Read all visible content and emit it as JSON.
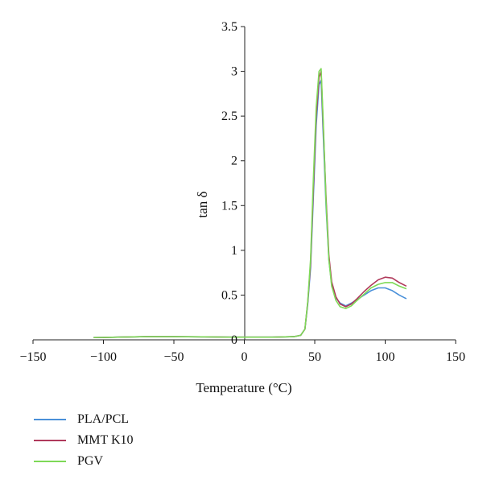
{
  "chart_data": {
    "type": "line",
    "xlabel": "Temperature (°C)",
    "ylabel": "tan δ",
    "xlim": [
      -150,
      150
    ],
    "ylim": [
      0,
      3.5
    ],
    "x_ticks": [
      -150,
      -100,
      -50,
      0,
      50,
      100,
      150
    ],
    "y_ticks": [
      0,
      0.5,
      1,
      1.5,
      2,
      2.5,
      3,
      3.5
    ],
    "x_tick_labels": [
      "−150",
      "−100",
      "−50",
      "0",
      "50",
      "100",
      "150"
    ],
    "y_tick_labels": [
      "0",
      "0.5",
      "1",
      "1.5",
      "2",
      "2.5",
      "3",
      "3.5"
    ],
    "grid": false,
    "legend_position": "bottom-left",
    "series": [
      {
        "name": "PLA/PCL",
        "color": "#4a90d9",
        "x": [
          -107,
          -90,
          -70,
          -50,
          -30,
          -10,
          0,
          20,
          35,
          40,
          43,
          45,
          47,
          49,
          51,
          53,
          54.5,
          56,
          58,
          60,
          62,
          65,
          68,
          72,
          76,
          80,
          85,
          90,
          95,
          100,
          105,
          110,
          115
        ],
        "y": [
          0.025,
          0.03,
          0.035,
          0.035,
          0.033,
          0.03,
          0.03,
          0.03,
          0.035,
          0.05,
          0.12,
          0.4,
          0.8,
          1.6,
          2.4,
          2.85,
          2.9,
          2.3,
          1.5,
          0.9,
          0.62,
          0.47,
          0.41,
          0.38,
          0.41,
          0.45,
          0.5,
          0.55,
          0.58,
          0.58,
          0.55,
          0.5,
          0.46
        ]
      },
      {
        "name": "MMT K10",
        "color": "#b03a5b",
        "x": [
          -107,
          -90,
          -70,
          -50,
          -30,
          -10,
          0,
          20,
          35,
          40,
          43,
          45,
          47,
          49,
          51,
          53,
          54.5,
          56,
          58,
          60,
          62,
          65,
          68,
          72,
          76,
          80,
          85,
          90,
          95,
          100,
          105,
          110,
          115
        ],
        "y": [
          0.025,
          0.03,
          0.035,
          0.035,
          0.033,
          0.03,
          0.03,
          0.03,
          0.035,
          0.05,
          0.12,
          0.42,
          0.85,
          1.7,
          2.5,
          2.93,
          3.0,
          2.4,
          1.6,
          0.95,
          0.65,
          0.48,
          0.4,
          0.37,
          0.4,
          0.46,
          0.54,
          0.61,
          0.67,
          0.7,
          0.69,
          0.64,
          0.6
        ]
      },
      {
        "name": "PGV",
        "color": "#7ed957",
        "x": [
          -107,
          -90,
          -70,
          -50,
          -30,
          -10,
          0,
          20,
          35,
          40,
          43,
          45,
          47,
          49,
          51,
          53,
          54.5,
          56,
          58,
          60,
          62,
          65,
          68,
          72,
          76,
          80,
          85,
          90,
          95,
          100,
          105,
          110,
          115
        ],
        "y": [
          0.025,
          0.03,
          0.035,
          0.035,
          0.033,
          0.03,
          0.03,
          0.03,
          0.035,
          0.05,
          0.12,
          0.43,
          0.9,
          1.8,
          2.6,
          3.0,
          3.03,
          2.45,
          1.55,
          0.9,
          0.6,
          0.44,
          0.37,
          0.35,
          0.38,
          0.44,
          0.51,
          0.58,
          0.62,
          0.64,
          0.64,
          0.6,
          0.57
        ]
      }
    ]
  }
}
